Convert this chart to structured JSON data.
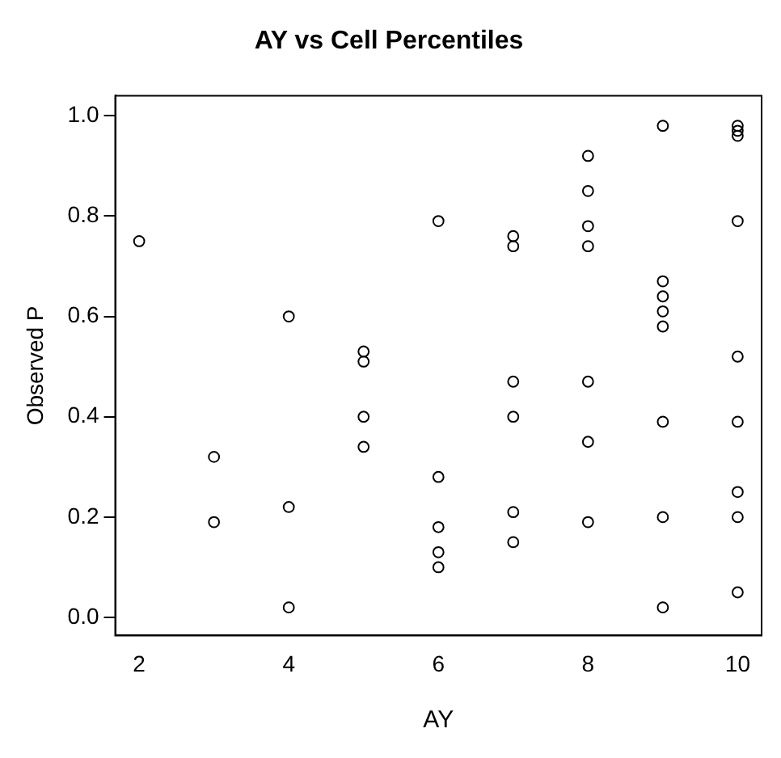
{
  "chart_data": {
    "type": "scatter",
    "title": "AY vs Cell Percentiles",
    "xlabel": "AY",
    "ylabel": "Observed P",
    "series": [
      {
        "color": "#000000",
        "x": [
          2,
          3,
          3,
          4,
          4,
          4,
          5,
          5,
          5,
          5,
          6,
          6,
          6,
          6,
          6,
          7,
          7,
          7,
          7,
          7,
          7,
          8,
          8,
          8,
          8,
          8,
          8,
          8,
          9,
          9,
          9,
          9,
          9,
          9,
          9,
          9,
          10,
          10,
          10,
          10,
          10,
          10,
          10,
          10,
          10
        ],
        "values": [
          0.75,
          0.32,
          0.19,
          0.6,
          0.22,
          0.02,
          0.53,
          0.51,
          0.4,
          0.34,
          0.79,
          0.28,
          0.18,
          0.13,
          0.1,
          0.76,
          0.74,
          0.47,
          0.4,
          0.21,
          0.15,
          0.92,
          0.85,
          0.78,
          0.74,
          0.47,
          0.35,
          0.19,
          0.98,
          0.67,
          0.64,
          0.61,
          0.58,
          0.39,
          0.2,
          0.02,
          0.98,
          0.97,
          0.96,
          0.79,
          0.52,
          0.39,
          0.25,
          0.2,
          0.05
        ]
      }
    ],
    "marker": "circle",
    "grid": false,
    "legend": false,
    "xlim": [
      1.68,
      10.32
    ],
    "xticks": [
      2,
      4,
      6,
      8,
      10
    ],
    "ylim": [
      -0.036,
      1.04
    ],
    "yticks": [
      {
        "value": 0,
        "label": "0.0"
      },
      {
        "value": 0.2,
        "label": "0.2"
      },
      {
        "value": 0.4,
        "label": "0.4"
      },
      {
        "value": 0.6,
        "label": "0.6"
      },
      {
        "value": 0.8,
        "label": "0.8"
      },
      {
        "value": 1,
        "label": "1.0"
      }
    ]
  }
}
